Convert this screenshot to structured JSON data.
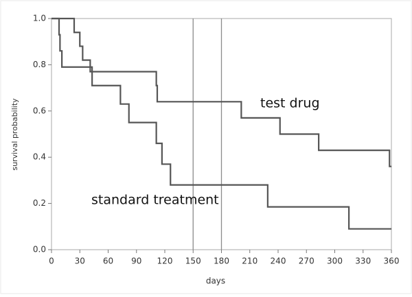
{
  "chart_data": {
    "type": "step",
    "xlabel": "days",
    "ylabel": "survival probability",
    "xlim": [
      0,
      360
    ],
    "ylim": [
      0,
      1
    ],
    "xticks": [
      0,
      30,
      60,
      90,
      120,
      150,
      180,
      210,
      240,
      270,
      300,
      330,
      360
    ],
    "yticks": [
      {
        "value": 0,
        "label": "0.0"
      },
      0.2,
      0.4,
      0.6,
      0.8,
      {
        "value": 1,
        "label": "1.0"
      }
    ],
    "reference_lines_x": [
      150,
      180
    ],
    "reference_color": "#8a8a8a",
    "series": [
      {
        "name": "test drug",
        "color": "#555555",
        "x": [
          0,
          24,
          30,
          33,
          41,
          111,
          112,
          201,
          242,
          283,
          358,
          360
        ],
        "values": [
          1.0,
          0.94,
          0.88,
          0.82,
          0.77,
          0.71,
          0.64,
          0.57,
          0.5,
          0.43,
          0.36,
          0.36
        ]
      },
      {
        "name": "standard treatment",
        "color": "#555555",
        "x": [
          0,
          8,
          9,
          11,
          43,
          73,
          82,
          111,
          117,
          126,
          229,
          315,
          360
        ],
        "values": [
          1.0,
          0.93,
          0.86,
          0.79,
          0.71,
          0.63,
          0.55,
          0.46,
          0.37,
          0.28,
          0.185,
          0.09,
          0.09
        ]
      }
    ]
  }
}
